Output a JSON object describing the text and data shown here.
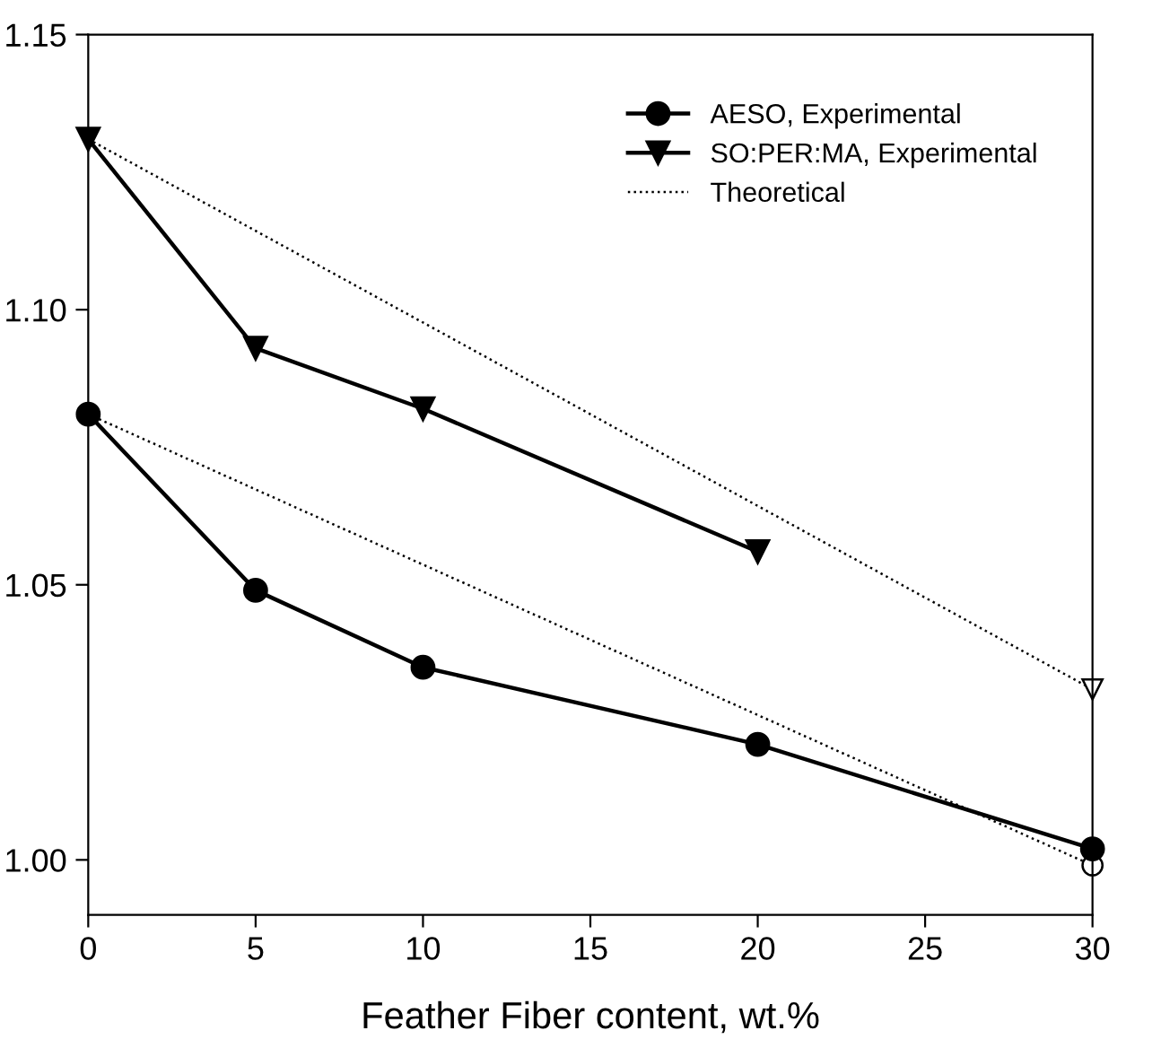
{
  "chart_data": {
    "type": "line",
    "xlabel": "Feather Fiber content, wt.%",
    "xlim": [
      0,
      30
    ],
    "xticks": [
      0,
      5,
      10,
      15,
      20,
      25,
      30
    ],
    "ylim": [
      0.99,
      1.15
    ],
    "yticks": [
      {
        "value": 1.0,
        "label": "1.00"
      },
      {
        "value": 1.05,
        "label": "1.05"
      },
      {
        "value": 1.1,
        "label": "1.10"
      },
      {
        "value": 1.15,
        "label": "1.15"
      }
    ],
    "grid": false,
    "legend": "top right",
    "line_style": "solid",
    "series": [
      {
        "name": "AESO, Experimental",
        "color": "#000000",
        "marker": "circle",
        "x": [
          0,
          5,
          10,
          20,
          30
        ],
        "values": [
          1.081,
          1.049,
          1.035,
          1.021,
          1.002
        ]
      },
      {
        "name": "SO:PER:MA, Experimental",
        "color": "#000000",
        "marker": "triangle",
        "x": [
          0,
          5,
          10,
          20
        ],
        "values": [
          1.131,
          1.093,
          1.082,
          1.056
        ]
      },
      {
        "name": "Theoretical",
        "color": "#000000",
        "marker": "circle",
        "line_style": "dotted",
        "x": [
          0,
          30
        ],
        "values": [
          1.081,
          0.999
        ]
      },
      {
        "color": "#000000",
        "marker": "triangle",
        "line_style": "dotted",
        "x": [
          0,
          30
        ],
        "values": [
          1.131,
          1.031
        ]
      }
    ]
  }
}
